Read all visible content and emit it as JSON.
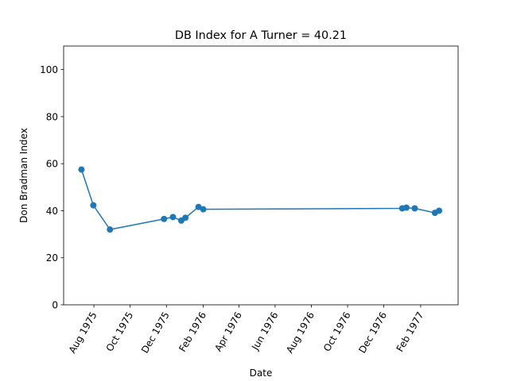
{
  "chart_data": {
    "type": "line",
    "title": "DB Index for A Turner = 40.21",
    "xlabel": "Date",
    "ylabel": "Don Bradman Index",
    "x_type": "date",
    "xlim": [
      "1975-06-11",
      "1977-04-05"
    ],
    "ylim": [
      0,
      110
    ],
    "x_ticks": [
      {
        "date": "1975-08-01",
        "label": "Aug 1975"
      },
      {
        "date": "1975-10-01",
        "label": "Oct 1975"
      },
      {
        "date": "1975-12-01",
        "label": "Dec 1975"
      },
      {
        "date": "1976-02-01",
        "label": "Feb 1976"
      },
      {
        "date": "1976-04-01",
        "label": "Apr 1976"
      },
      {
        "date": "1976-06-01",
        "label": "Jun 1976"
      },
      {
        "date": "1976-08-01",
        "label": "Aug 1976"
      },
      {
        "date": "1976-10-01",
        "label": "Oct 1976"
      },
      {
        "date": "1976-12-01",
        "label": "Dec 1976"
      },
      {
        "date": "1977-02-01",
        "label": "Feb 1977"
      }
    ],
    "y_ticks": [
      0,
      20,
      40,
      60,
      80,
      100
    ],
    "grid": false,
    "series": [
      {
        "color": "#1f77b4",
        "marker": "circle",
        "points": [
          {
            "x": "1975-07-11",
            "y": 57.5
          },
          {
            "x": "1975-07-31",
            "y": 42.3
          },
          {
            "x": "1975-08-28",
            "y": 32.0
          },
          {
            "x": "1975-11-27",
            "y": 36.5
          },
          {
            "x": "1975-12-12",
            "y": 37.3
          },
          {
            "x": "1975-12-26",
            "y": 35.8
          },
          {
            "x": "1976-01-02",
            "y": 37.0
          },
          {
            "x": "1976-01-24",
            "y": 41.6
          },
          {
            "x": "1976-02-01",
            "y": 40.6
          },
          {
            "x": "1977-01-01",
            "y": 41.0
          },
          {
            "x": "1977-01-08",
            "y": 41.3
          },
          {
            "x": "1977-01-22",
            "y": 41.0
          },
          {
            "x": "1977-02-25",
            "y": 39.1
          },
          {
            "x": "1977-03-04",
            "y": 40.0
          }
        ]
      }
    ]
  }
}
